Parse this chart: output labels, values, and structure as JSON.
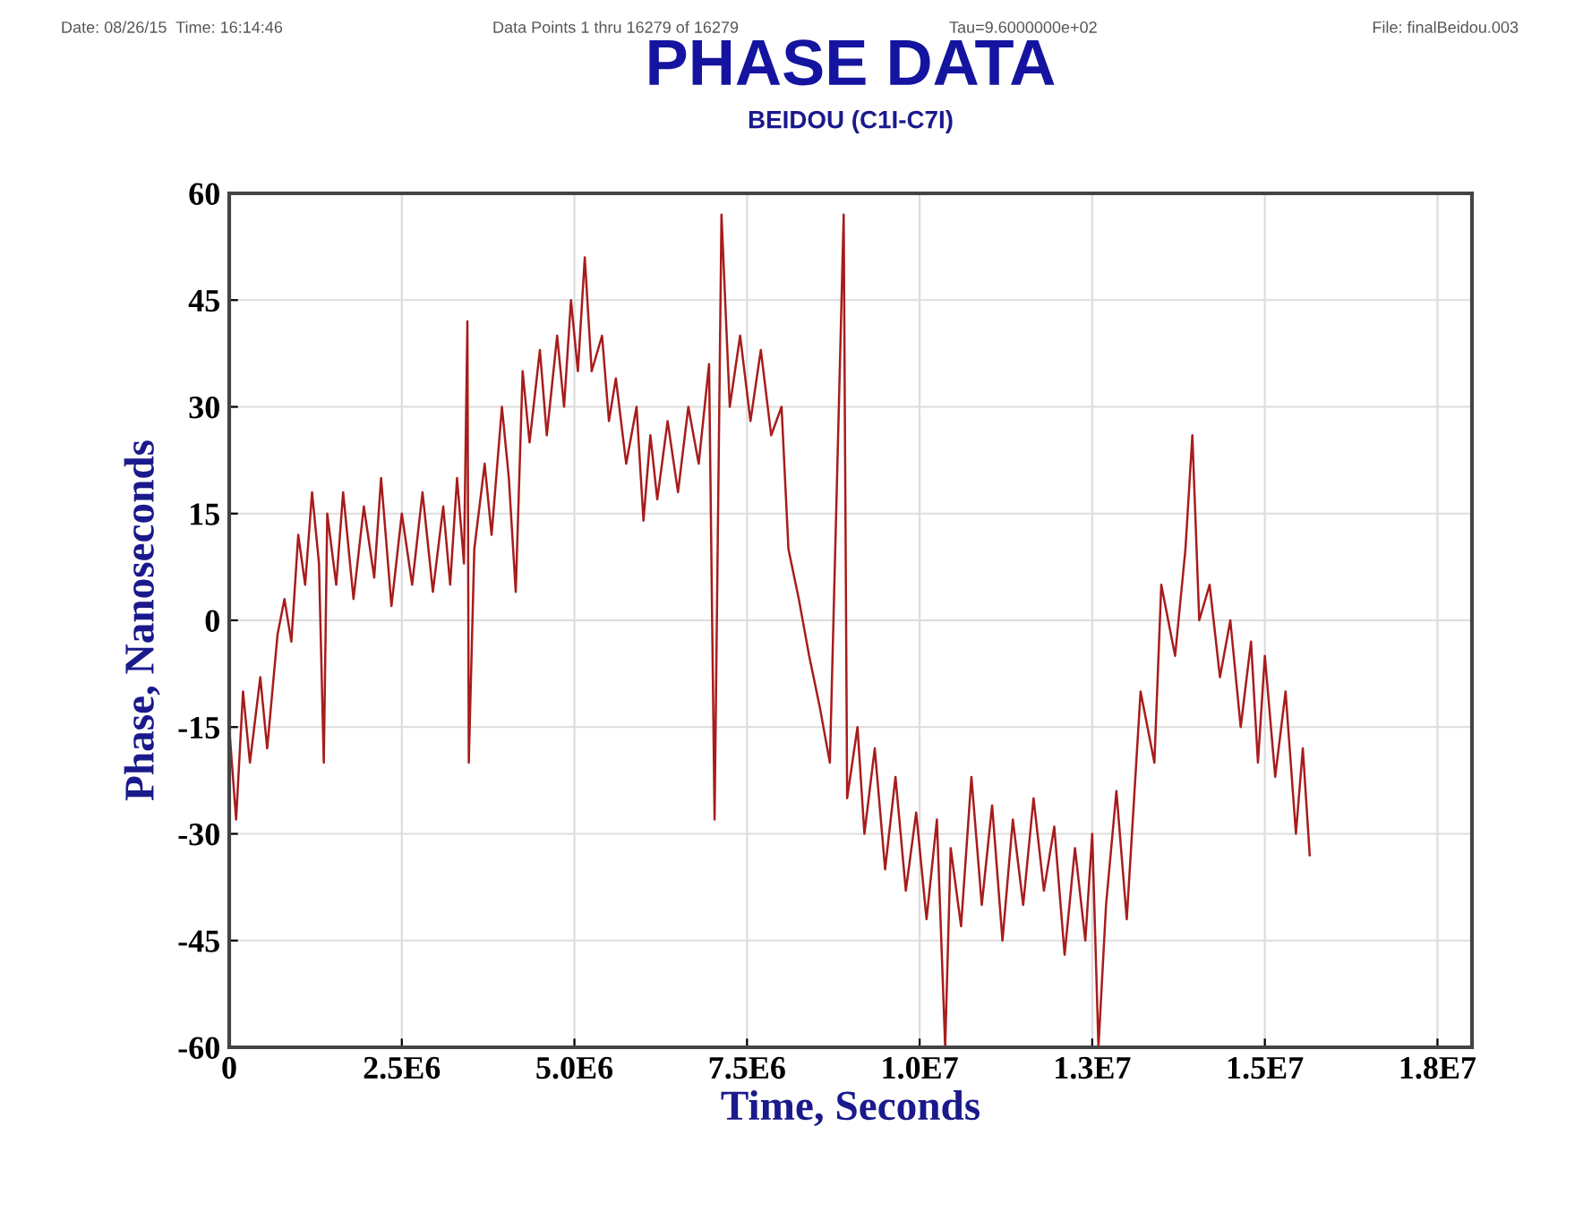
{
  "chart_data": {
    "type": "line",
    "title": "PHASE DATA",
    "subtitle": "BEIDOU (C1I-C7I)",
    "xlabel": "Time, Seconds",
    "ylabel": "Phase, Nanoseconds",
    "annotations": [
      "Date: 08/26/15  Time: 16:14:46",
      "Data Points 1 thru 16279 of 16279",
      "Tau=9.6000000e+02",
      "File: finalBeidou.003"
    ],
    "x": [
      0,
      100000,
      200000,
      300000,
      450000,
      550000,
      700000,
      800000,
      900000,
      1000000,
      1100000,
      1200000,
      1300000,
      1370000,
      1420000,
      1550000,
      1650000,
      1800000,
      1950000,
      2100000,
      2200000,
      2350000,
      2500000,
      2650000,
      2800000,
      2950000,
      3100000,
      3200000,
      3300000,
      3400000,
      3450000,
      3470000,
      3550000,
      3700000,
      3800000,
      3950000,
      4050000,
      4150000,
      4250000,
      4350000,
      4500000,
      4600000,
      4750000,
      4850000,
      4950000,
      5050000,
      5150000,
      5250000,
      5400000,
      5500000,
      5600000,
      5750000,
      5900000,
      6000000,
      6100000,
      6200000,
      6350000,
      6500000,
      6650000,
      6800000,
      6950000,
      7030000,
      7130000,
      7250000,
      7400000,
      7550000,
      7700000,
      7850000,
      8000000,
      8100000,
      8250000,
      8400000,
      8550000,
      8700000,
      8900000,
      8950000,
      9100000,
      9200000,
      9350000,
      9500000,
      9650000,
      9800000,
      9950000,
      10100000,
      10250000,
      10370000,
      10450000,
      10600000,
      10750000,
      10900000,
      11050000,
      11200000,
      11350000,
      11500000,
      11650000,
      11800000,
      11950000,
      12100000,
      12250000,
      12400000,
      12500000,
      12590000,
      12700000,
      12850000,
      13000000,
      13200000,
      13400000,
      13500000,
      13700000,
      13850000,
      13950000,
      14050000,
      14200000,
      14350000,
      14500000,
      14650000,
      14800000,
      14900000,
      15000000,
      15150000,
      15300000,
      15450000,
      15550000,
      15650000
    ],
    "series": [
      {
        "color": "#a81c1c",
        "values": [
          -15,
          -28,
          -10,
          -20,
          -8,
          -18,
          -2,
          3,
          -3,
          12,
          5,
          18,
          8,
          -20,
          15,
          5,
          18,
          3,
          16,
          6,
          20,
          2,
          15,
          5,
          18,
          4,
          16,
          5,
          20,
          8,
          42,
          -20,
          10,
          22,
          12,
          30,
          20,
          4,
          35,
          25,
          38,
          26,
          40,
          30,
          45,
          35,
          51,
          35,
          40,
          28,
          34,
          22,
          30,
          14,
          26,
          17,
          28,
          18,
          30,
          22,
          36,
          -28,
          57,
          30,
          40,
          28,
          38,
          26,
          30,
          10,
          3,
          -5,
          -12,
          -20,
          57,
          -25,
          -15,
          -30,
          -18,
          -35,
          -22,
          -38,
          -27,
          -42,
          -28,
          -60,
          -32,
          -43,
          -22,
          -40,
          -26,
          -45,
          -28,
          -40,
          -25,
          -38,
          -29,
          -47,
          -32,
          -45,
          -30,
          -60,
          -40,
          -24,
          -42,
          -10,
          -20,
          5,
          -5,
          10,
          26,
          0,
          5,
          -8,
          0,
          -15,
          -3,
          -20,
          -5,
          -22,
          -10,
          -30,
          -18,
          -33
        ]
      }
    ],
    "xlim": [
      0,
      18000000
    ],
    "ylim": [
      -60,
      60
    ],
    "xticks": [
      0,
      {
        "value": 2500000,
        "label": "2.5E6"
      },
      {
        "value": 5000000,
        "label": "5.0E6"
      },
      {
        "value": 7500000,
        "label": "7.5E6"
      },
      {
        "value": 10000000,
        "label": "1.0E7"
      },
      {
        "value": 12500000,
        "label": "1.3E7"
      },
      {
        "value": 15000000,
        "label": "1.5E7"
      },
      {
        "value": 17500000,
        "label": "1.8E7"
      }
    ],
    "yticks": [
      -60,
      -45,
      -30,
      -15,
      0,
      15,
      30,
      45,
      60
    ],
    "grid": true,
    "marker": "none",
    "line_style": "solid"
  }
}
